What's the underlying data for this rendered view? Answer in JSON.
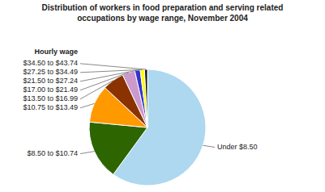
{
  "chart_data": {
    "type": "pie",
    "title": "Distribution of workers in food preparation and serving related\noccupations by wage range, November 2004",
    "annotations": [
      "Hourly wage"
    ],
    "categories": [
      "Under $8.50",
      "$8.50 to $10.74",
      "$10.75 to $13.49",
      "$13.50 to $16.99",
      "$17.00 to $21.49",
      "$21.50 to $27.24",
      "$27.25 to $34.49",
      "$34.50 to $43.74"
    ],
    "values": [
      60.0,
      16.5,
      10.5,
      6.0,
      3.5,
      1.5,
      1.2,
      0.8
    ],
    "colors": [
      "#add8f0",
      "#2d6600",
      "#ff9900",
      "#8b3300",
      "#cc99cc",
      "#3333cc",
      "#ffff00",
      "#111111"
    ]
  }
}
